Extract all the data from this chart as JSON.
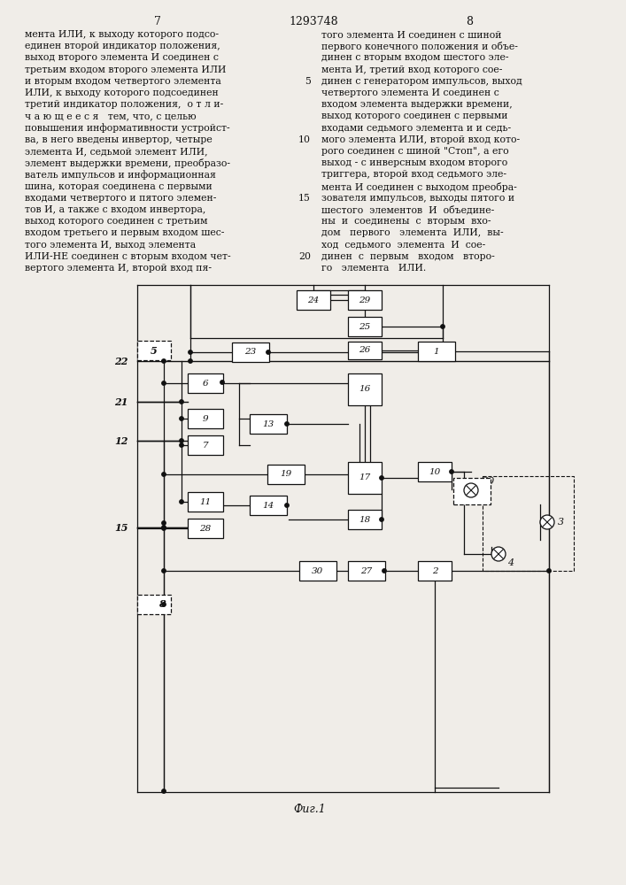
{
  "bg_color": "#f0ede8",
  "text_color": "#111111",
  "page_left": "7",
  "page_center": "1293748",
  "page_right": "8",
  "text_left_lines": [
    "мента ИЛИ, к выходу которого подсо-",
    "единен второй индикатор положения,",
    "выход второго элемента И соединен с",
    "третьим входом второго элемента ИЛИ",
    "и вторым входом четвертого элемента",
    "ИЛИ, к выходу которого подсоединен",
    "третий индикатор положения,  о т л и-",
    "ч а ю щ е е с я   тем, что, с целью",
    "повышения информативности устройст-",
    "ва, в него введены инвертор, четыре",
    "элемента И, седьмой элемент ИЛИ,",
    "элемент выдержки времени, преобразо-",
    "ватель импульсов и информационная",
    "шина, которая соединена с первыми",
    "входами четвертого и пятого элемен-",
    "тов И, а также с входом инвертора,",
    "выход которого соединен с третьим",
    "входом третьего и первым входом шес-",
    "того элемента И, выход элемента",
    "ИЛИ-НЕ соединен с вторым входом чет-",
    "вертого элемента И, второй вход пя-"
  ],
  "text_right_lines": [
    "того элемента И соединен с шиной",
    "первого конечного положения и объе-",
    "динен с вторым входом шестого эле-",
    "мента И, третий вход которого сое-",
    "динен с генератором импульсов, выход",
    "четвертого элемента И соединен с",
    "входом элемента выдержки времени,",
    "выход которого соединен с первыми",
    "входами седьмого элемента и и седь-",
    "мого элемента ИЛИ, второй вход кото-",
    "рого соединен с шиной \"Стоп\", а его",
    "выход - с инверсным входом второго",
    "триггера, второй вход седьмого эле-",
    "мента И соединен с выходом преобра-",
    "зователя импульсов, выходы пятого и",
    "шестого  элементов  И  объедине-",
    "ны  и  соединены  с  вторым  вхо-",
    "дом   первого   элемента  ИЛИ,  вы-",
    "ход  седьмого  элемента  И  сое-",
    "динен  с  первым   входом   второ-",
    "го   элемента   ИЛИ."
  ],
  "line_numbers": [
    {
      "n": "5",
      "row": 4
    },
    {
      "n": "10",
      "row": 9
    },
    {
      "n": "15",
      "row": 14
    },
    {
      "n": "20",
      "row": 19
    }
  ],
  "caption": "Фиг.1"
}
